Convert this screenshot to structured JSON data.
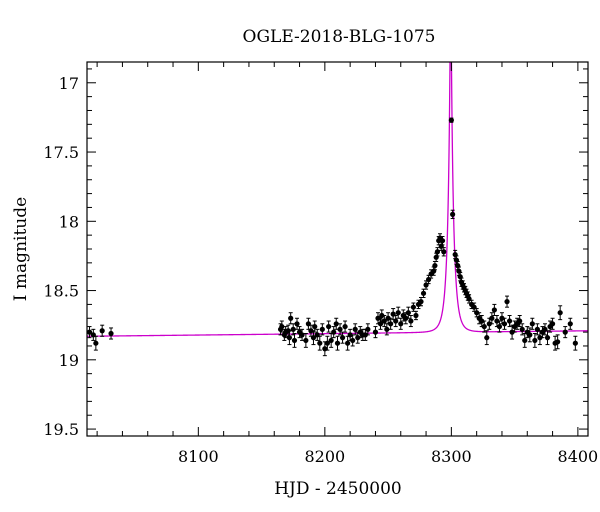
{
  "chart_data": {
    "type": "scatter",
    "title": "OGLE-2018-BLG-1075",
    "xlabel": "HJD - 2450000",
    "ylabel": "I magnitude",
    "xlim": [
      8012,
      8408
    ],
    "ylim": [
      19.55,
      16.85
    ],
    "y_inverted": true,
    "x_ticks": [
      8100,
      8200,
      8300,
      8400
    ],
    "x_tick_labels": [
      "8100",
      "8200",
      "8300",
      "8400"
    ],
    "y_ticks": [
      17,
      17.5,
      18,
      18.5,
      19,
      19.5
    ],
    "y_tick_labels": [
      "17",
      "17.5",
      "18",
      "18.5",
      "19",
      "19.5"
    ],
    "grid": false,
    "colors": {
      "data": "#000000",
      "model": "#cc00cc"
    },
    "series": [
      {
        "kind": "points_with_errorbars",
        "x": [
          8014,
          8017,
          8019,
          8024,
          8031,
          8165,
          8166,
          8168,
          8169,
          8171,
          8172,
          8173,
          8175,
          8176,
          8178,
          8180,
          8182,
          8185,
          8187,
          8189,
          8191,
          8192,
          8194,
          8196,
          8198,
          8200,
          8202,
          8203,
          8205,
          8207,
          8209,
          8210,
          8212,
          8214,
          8216,
          8218,
          8220,
          8222,
          8224,
          8226,
          8228,
          8230,
          8232,
          8234,
          8240,
          8242,
          8244,
          8245,
          8247,
          8249,
          8250,
          8252,
          8254,
          8256,
          8258,
          8260,
          8262,
          8264,
          8266,
          8268,
          8270,
          8272,
          8274,
          8276,
          8278,
          8280,
          8282,
          8284,
          8286,
          8287,
          8288,
          8289,
          8290,
          8291,
          8292,
          8293,
          8294,
          8300,
          8301,
          8303,
          8304,
          8305,
          8306,
          8307,
          8308,
          8309,
          8310,
          8311,
          8312,
          8313,
          8314,
          8316,
          8318,
          8320,
          8322,
          8324,
          8326,
          8328,
          8330,
          8332,
          8334,
          8336,
          8338,
          8340,
          8342,
          8344,
          8346,
          8348,
          8350,
          8352,
          8354,
          8356,
          8358,
          8360,
          8362,
          8364,
          8366,
          8368,
          8370,
          8372,
          8374,
          8376,
          8378,
          8380,
          8382,
          8384,
          8386,
          8390,
          8394,
          8398
        ],
        "y": [
          18.8,
          18.82,
          18.88,
          18.79,
          18.81,
          18.78,
          18.76,
          18.82,
          18.8,
          18.79,
          18.84,
          18.7,
          18.78,
          18.86,
          18.74,
          18.8,
          18.82,
          18.86,
          18.74,
          18.79,
          18.84,
          18.76,
          18.82,
          18.88,
          18.78,
          18.92,
          18.88,
          18.76,
          18.86,
          18.8,
          18.74,
          18.88,
          18.78,
          18.84,
          18.76,
          18.88,
          18.82,
          18.86,
          18.78,
          18.84,
          18.8,
          18.82,
          18.82,
          18.78,
          18.8,
          18.7,
          18.74,
          18.68,
          18.72,
          18.78,
          18.7,
          18.74,
          18.67,
          18.72,
          18.66,
          18.74,
          18.68,
          18.7,
          18.66,
          18.72,
          18.62,
          18.68,
          18.6,
          18.58,
          18.52,
          18.46,
          18.42,
          18.38,
          18.36,
          18.32,
          18.26,
          18.22,
          18.14,
          18.12,
          18.18,
          18.14,
          18.22,
          17.27,
          17.95,
          18.24,
          18.28,
          18.32,
          18.36,
          18.4,
          18.44,
          18.46,
          18.48,
          18.5,
          18.52,
          18.54,
          18.56,
          18.6,
          18.62,
          18.66,
          18.7,
          18.72,
          18.76,
          18.84,
          18.74,
          18.7,
          18.64,
          18.72,
          18.76,
          18.7,
          18.74,
          18.58,
          18.72,
          18.8,
          18.76,
          18.74,
          18.72,
          18.78,
          18.86,
          18.8,
          18.82,
          18.74,
          18.86,
          18.78,
          18.84,
          18.8,
          18.78,
          18.84,
          18.76,
          18.74,
          18.88,
          18.87,
          18.66,
          18.8,
          18.74,
          18.88
        ],
        "yerr": [
          0.04,
          0.04,
          0.05,
          0.04,
          0.04,
          0.04,
          0.04,
          0.04,
          0.04,
          0.04,
          0.05,
          0.04,
          0.04,
          0.05,
          0.04,
          0.04,
          0.04,
          0.05,
          0.04,
          0.04,
          0.05,
          0.04,
          0.04,
          0.05,
          0.04,
          0.05,
          0.05,
          0.04,
          0.05,
          0.04,
          0.04,
          0.05,
          0.04,
          0.04,
          0.04,
          0.05,
          0.04,
          0.04,
          0.04,
          0.04,
          0.04,
          0.04,
          0.04,
          0.04,
          0.04,
          0.04,
          0.04,
          0.04,
          0.04,
          0.04,
          0.04,
          0.04,
          0.04,
          0.04,
          0.04,
          0.04,
          0.04,
          0.04,
          0.04,
          0.04,
          0.03,
          0.03,
          0.03,
          0.03,
          0.03,
          0.03,
          0.03,
          0.03,
          0.03,
          0.03,
          0.03,
          0.03,
          0.03,
          0.03,
          0.03,
          0.03,
          0.03,
          0.015,
          0.03,
          0.03,
          0.03,
          0.03,
          0.03,
          0.03,
          0.03,
          0.03,
          0.03,
          0.03,
          0.03,
          0.03,
          0.03,
          0.03,
          0.03,
          0.03,
          0.04,
          0.04,
          0.04,
          0.05,
          0.04,
          0.04,
          0.04,
          0.04,
          0.04,
          0.04,
          0.04,
          0.04,
          0.04,
          0.05,
          0.04,
          0.04,
          0.04,
          0.04,
          0.05,
          0.04,
          0.05,
          0.04,
          0.05,
          0.04,
          0.05,
          0.04,
          0.04,
          0.05,
          0.04,
          0.04,
          0.05,
          0.05,
          0.05,
          0.04,
          0.04,
          0.05
        ]
      },
      {
        "kind": "model_curve",
        "baseline_mag": 18.83,
        "baseline_slope_per_day": -0.0001,
        "t0": 8299.5,
        "u0": 0.11,
        "tE": 4.6,
        "x_min": 8012,
        "x_max": 8408
      }
    ]
  }
}
